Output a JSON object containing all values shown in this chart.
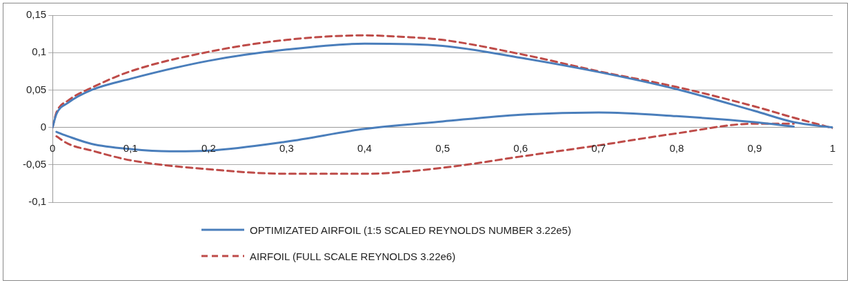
{
  "chart_data": {
    "type": "line",
    "xlim": [
      0,
      1
    ],
    "xticks": [
      {
        "value": 0,
        "label": "0"
      },
      {
        "value": 0.1,
        "label": "0,1"
      },
      {
        "value": 0.2,
        "label": "0,2"
      },
      {
        "value": 0.3,
        "label": "0,3"
      },
      {
        "value": 0.4,
        "label": "0,4"
      },
      {
        "value": 0.5,
        "label": "0,5"
      },
      {
        "value": 0.6,
        "label": "0,6"
      },
      {
        "value": 0.7,
        "label": "0,7"
      },
      {
        "value": 0.8,
        "label": "0,8"
      },
      {
        "value": 0.9,
        "label": "0,9"
      },
      {
        "value": 1,
        "label": "1"
      }
    ],
    "ylim": [
      -0.1,
      0.15
    ],
    "yticks": [
      {
        "value": -0.1,
        "label": "-0,1"
      },
      {
        "value": -0.05,
        "label": "-0,05"
      },
      {
        "value": 0,
        "label": "0"
      },
      {
        "value": 0.05,
        "label": "0,05"
      },
      {
        "value": 0.1,
        "label": "0,1"
      },
      {
        "value": 0.15,
        "label": "0,15"
      }
    ],
    "grid": "y",
    "legend": "bottom",
    "marker": "none",
    "series": [
      {
        "name": "OPTIMIZATED AIRFOIL (1:5 SCALED REYNOLDS NUMBER 3.22e5)",
        "color": "#4a7ebb",
        "line_style": "solid",
        "x": [
          0,
          0.005,
          0.02,
          0.05,
          0.1,
          0.2,
          0.3,
          0.4,
          0.5,
          0.6,
          0.7,
          0.8,
          0.9,
          0.95,
          1
        ],
        "values": [
          0,
          0.018,
          0.033,
          0.05,
          0.065,
          0.089,
          0.104,
          0.112,
          0.109,
          0.093,
          0.074,
          0.051,
          0.022,
          0.007,
          0
        ]
      },
      {
        "color": "#4a7ebb",
        "line_style": "solid",
        "x": [
          0.005,
          0.02,
          0.05,
          0.1,
          0.15,
          0.2,
          0.3,
          0.4,
          0.5,
          0.6,
          0.7,
          0.8,
          0.9,
          0.95
        ],
        "values": [
          -0.006,
          -0.012,
          -0.022,
          -0.029,
          -0.032,
          -0.031,
          -0.019,
          -0.002,
          0.008,
          0.017,
          0.02,
          0.015,
          0.007,
          0.001
        ]
      },
      {
        "name": "AIRFOIL (FULL SCALE REYNOLDS 3.22e6)",
        "color": "#be4b48",
        "line_style": "dashed",
        "x": [
          0,
          0.005,
          0.02,
          0.05,
          0.1,
          0.2,
          0.3,
          0.4,
          0.45,
          0.5,
          0.6,
          0.7,
          0.8,
          0.9,
          0.95,
          1
        ],
        "values": [
          0,
          0.02,
          0.036,
          0.053,
          0.075,
          0.101,
          0.117,
          0.123,
          0.121,
          0.117,
          0.098,
          0.075,
          0.054,
          0.028,
          0.013,
          -0.001
        ]
      },
      {
        "color": "#be4b48",
        "line_style": "dashed",
        "x": [
          0.005,
          0.02,
          0.05,
          0.1,
          0.2,
          0.3,
          0.4,
          0.5,
          0.6,
          0.7,
          0.8,
          0.9,
          0.95
        ],
        "values": [
          -0.012,
          -0.022,
          -0.031,
          -0.044,
          -0.056,
          -0.062,
          -0.062,
          -0.054,
          -0.039,
          -0.024,
          -0.008,
          0.005,
          0.005
        ]
      }
    ]
  }
}
